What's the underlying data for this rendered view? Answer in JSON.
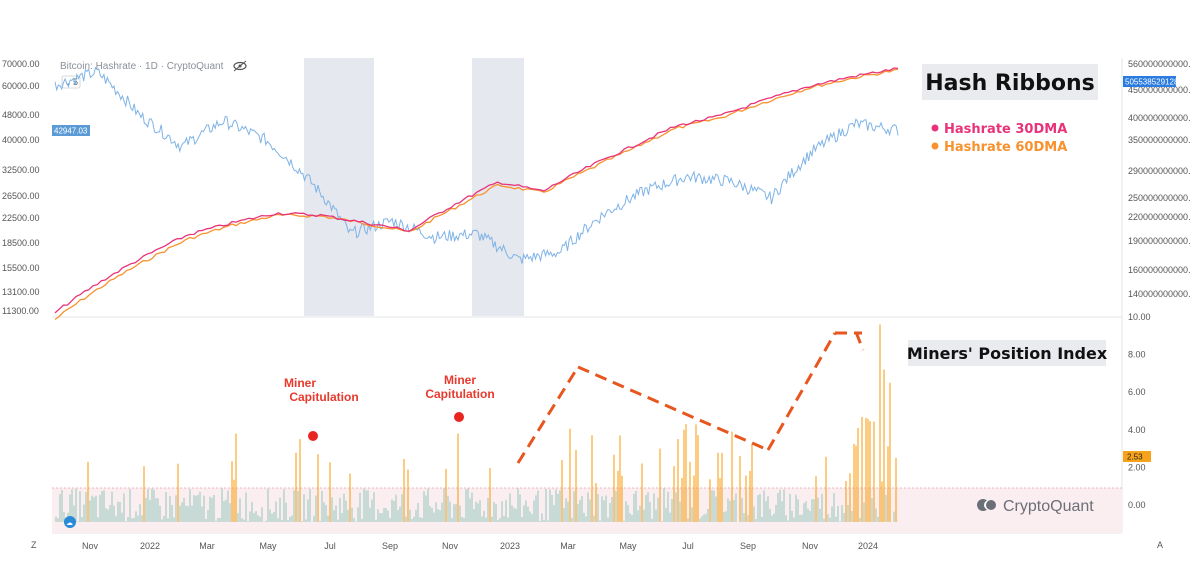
{
  "header": {
    "source_label": "Bitcoin: Hashrate · 1D · CryptoQuant",
    "interval_badge": "5"
  },
  "chart_data": [
    {
      "type": "line",
      "title": "Hash Ribbons",
      "left_axis_ticks": [
        "70000.00",
        "60000.00",
        "48000.00",
        "40000.00",
        "32500.00",
        "26500.00",
        "22500.00",
        "18500.00",
        "15500.00",
        "13100.00",
        "11300.00"
      ],
      "right_axis_ticks": [
        "560000000000.",
        "450000000000.",
        "400000000000.",
        "350000000000.",
        "290000000000.",
        "250000000000.",
        "220000000000.",
        "190000000000.",
        "160000000000.",
        "140000000000."
      ],
      "x_ticks": [
        "Nov",
        "2022",
        "Mar",
        "May",
        "Jul",
        "Sep",
        "Nov",
        "2023",
        "Mar",
        "May",
        "Jul",
        "Sep",
        "Nov",
        "2024"
      ],
      "price_label": "42947.03",
      "hashrate_label": "505538529128.",
      "series": [
        {
          "name": "Hashrate 30DMA",
          "color": "#e8337a",
          "values": [
            125,
            150,
            175,
            200,
            215,
            228,
            225,
            215,
            205,
            240,
            275,
            260,
            300,
            340,
            385,
            410,
            450,
            490,
            520,
            545
          ]
        },
        {
          "name": "Hashrate 60DMA",
          "color": "#f7922e",
          "values": [
            120,
            145,
            170,
            195,
            212,
            225,
            224,
            214,
            203,
            235,
            270,
            258,
            295,
            335,
            380,
            405,
            445,
            485,
            515,
            540
          ]
        },
        {
          "name": "",
          "color": "#7fb3e6",
          "values": [
            60000,
            66000,
            48000,
            38000,
            46000,
            40000,
            30000,
            20000,
            22000,
            19500,
            20000,
            16500,
            17500,
            23000,
            27500,
            30500,
            29500,
            26000,
            37000,
            45000,
            43000
          ]
        }
      ],
      "shaded_periods": [
        "Miner Capitulation 2022",
        "Miner Capitulation late 2022"
      ]
    },
    {
      "type": "bar",
      "title": "Miners' Position Index",
      "y_ticks": [
        "10.00",
        "8.00",
        "6.00",
        "4.00",
        "2.00",
        "0.00"
      ],
      "ylim": [
        -1,
        10
      ],
      "threshold": 1,
      "current_value_label": "2.53",
      "annotations": [
        "Miner\nCapitulation",
        "Miner\nCapitulation"
      ],
      "colors": {
        "above": "#f7a21b",
        "below": "#9ec9bf",
        "trend": "#e8561f",
        "marker": "#e8261f"
      }
    }
  ],
  "legend": {
    "items": [
      {
        "label": "Hashrate 30DMA",
        "color": "#e8337a"
      },
      {
        "label": "Hashrate 60DMA",
        "color": "#f7922e"
      }
    ]
  },
  "annotations": {
    "capitulation_1": [
      "Miner",
      "Capitulation"
    ],
    "capitulation_2": [
      "Miner",
      "Capitulation"
    ]
  },
  "watermark": "CryptoQuant",
  "corner_labels": {
    "left": "Z",
    "right": "A"
  }
}
